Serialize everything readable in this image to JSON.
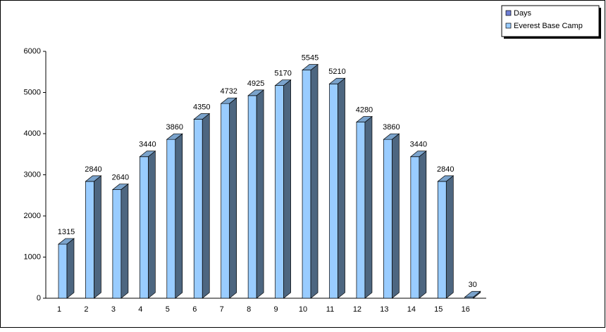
{
  "chart_data": {
    "type": "bar3d",
    "categories": [
      "1",
      "2",
      "3",
      "4",
      "5",
      "6",
      "7",
      "8",
      "9",
      "10",
      "11",
      "12",
      "13",
      "14",
      "15",
      "16"
    ],
    "series": [
      {
        "name": "Days",
        "color": "#6f7fd6",
        "values": [
          null,
          null,
          null,
          null,
          null,
          null,
          null,
          null,
          null,
          null,
          null,
          null,
          null,
          null,
          null,
          null
        ]
      },
      {
        "name": "Everest Base Camp",
        "color": "#99ccff",
        "values": [
          1315,
          2840,
          2640,
          3440,
          3860,
          4350,
          4732,
          4925,
          5170,
          5545,
          5210,
          4280,
          3860,
          3440,
          2840,
          30
        ]
      }
    ],
    "ylim": [
      0,
      6000
    ],
    "yticks": [
      0,
      1000,
      2000,
      3000,
      4000,
      5000,
      6000
    ],
    "data_labels": true,
    "legend": "top-right"
  }
}
